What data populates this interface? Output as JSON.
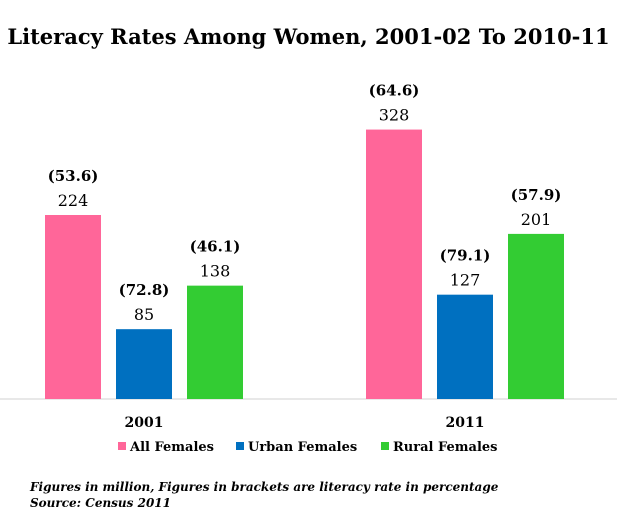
{
  "chart_data": {
    "type": "bar",
    "title": "Literacy Rates Among Women, 2001-02 To 2010-11",
    "categories": [
      "2001",
      "2011"
    ],
    "series": [
      {
        "name": "All Females",
        "color": "#ff6699",
        "values": [
          224,
          328
        ],
        "labels": [
          "(53.6)",
          "(64.6)"
        ]
      },
      {
        "name": "Urban Females",
        "color": "#0070c0",
        "values": [
          85,
          127
        ],
        "labels": [
          "(72.8)",
          "(79.1)"
        ]
      },
      {
        "name": "Rural Females",
        "color": "#33cc33",
        "values": [
          138,
          201
        ],
        "labels": [
          "(46.1)",
          "(57.9)"
        ]
      }
    ],
    "xlabel": "",
    "ylabel": "",
    "ylim": [
      0,
      360
    ],
    "grid": false,
    "legend_position": "bottom"
  },
  "notes": {
    "line1": "Figures in million, Figures in brackets are literacy rate in percentage",
    "line2": "Source: Census 2011"
  }
}
